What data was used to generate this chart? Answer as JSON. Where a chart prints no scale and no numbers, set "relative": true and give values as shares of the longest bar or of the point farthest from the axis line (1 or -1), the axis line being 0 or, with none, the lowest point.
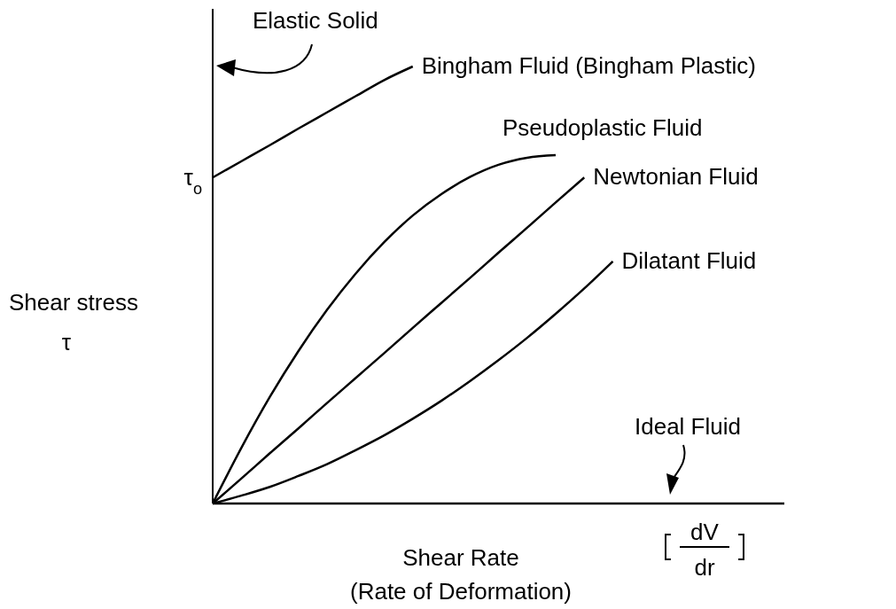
{
  "chart_data": {
    "type": "line",
    "relative": true,
    "xlabel": "Shear Rate\n(Rate of Deformation)",
    "ylabel": "Shear stress\nτ",
    "categories": [
      null,
      null,
      null,
      null,
      null,
      null,
      null,
      null,
      null,
      null,
      null,
      null,
      null,
      null,
      null,
      null,
      null,
      null,
      null,
      null,
      null
    ],
    "series": [
      {
        "name": "Bingham Fluid (Bingham Plastic)",
        "color": "#000000",
        "values": [
          0.746,
          0.783,
          0.82,
          0.858,
          0.895,
          0.932,
          0.969,
          1.0,
          null,
          null,
          null,
          null,
          null,
          null,
          null,
          null,
          null,
          null,
          null,
          null,
          null
        ]
      },
      {
        "name": "Pseudoplastic Fluid",
        "color": "#000000",
        "values": [
          0,
          0.127,
          0.244,
          0.349,
          0.443,
          0.526,
          0.598,
          0.659,
          0.708,
          0.747,
          0.775,
          0.791,
          0.797,
          null,
          null,
          null,
          null,
          null,
          null,
          null,
          null
        ]
      },
      {
        "name": "Newtonian Fluid",
        "color": "#000000",
        "values": [
          0,
          0.057,
          0.115,
          0.172,
          0.23,
          0.287,
          0.344,
          0.402,
          0.459,
          0.516,
          0.574,
          0.631,
          0.689,
          0.746,
          null,
          null,
          null,
          null,
          null,
          null,
          null
        ]
      },
      {
        "name": "Dilatant Fluid",
        "color": "#000000",
        "values": [
          0,
          0.018,
          0.038,
          0.063,
          0.09,
          0.122,
          0.156,
          0.194,
          0.235,
          0.28,
          0.328,
          0.379,
          0.434,
          0.492,
          0.554,
          null,
          null,
          null,
          null,
          null,
          null
        ]
      },
      {
        "name": "Ideal Fluid",
        "color": "#000000",
        "values": [
          0,
          0,
          0,
          0,
          0,
          0,
          0,
          0,
          0,
          0,
          0,
          0,
          0,
          0,
          0,
          0,
          0,
          0,
          0,
          0,
          0
        ]
      }
    ],
    "annotations": [
      "Elastic Solid",
      "τ$_{o}$",
      "dV",
      "dr"
    ],
    "grid": false,
    "marker": "none",
    "line_style": "solid"
  }
}
